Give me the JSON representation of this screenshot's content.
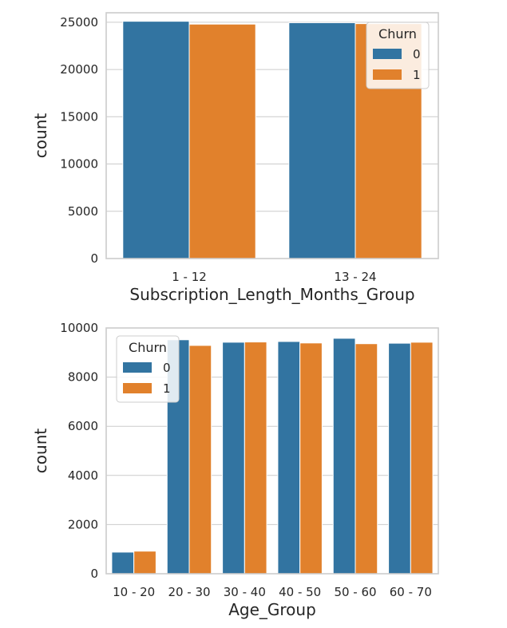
{
  "chart_data": [
    {
      "type": "bar",
      "xlabel": "Subscription_Length_Months_Group",
      "ylabel": "count",
      "categories": [
        "1 - 12",
        "13 - 24"
      ],
      "ylim": [
        0,
        26000
      ],
      "yticks": [
        0,
        5000,
        10000,
        15000,
        20000,
        25000
      ],
      "grid": true,
      "legend": {
        "title": "Churn",
        "placement": "top-right"
      },
      "series": [
        {
          "name": "0",
          "color": "#3274a1",
          "values": [
            25100,
            24950
          ]
        },
        {
          "name": "1",
          "color": "#e1812c",
          "values": [
            24800,
            24850
          ]
        }
      ]
    },
    {
      "type": "bar",
      "xlabel": "Age_Group",
      "ylabel": "count",
      "categories": [
        "10 - 20",
        "20 - 30",
        "30 - 40",
        "40 - 50",
        "50 - 60",
        "60 - 70"
      ],
      "ylim": [
        0,
        10000
      ],
      "yticks": [
        0,
        2000,
        4000,
        6000,
        8000,
        10000
      ],
      "grid": true,
      "legend": {
        "title": "Churn",
        "placement": "top-left"
      },
      "series": [
        {
          "name": "0",
          "color": "#3274a1",
          "values": [
            880,
            9520,
            9420,
            9450,
            9580,
            9380
          ]
        },
        {
          "name": "1",
          "color": "#e1812c",
          "values": [
            920,
            9290,
            9430,
            9390,
            9360,
            9420
          ]
        }
      ]
    }
  ]
}
